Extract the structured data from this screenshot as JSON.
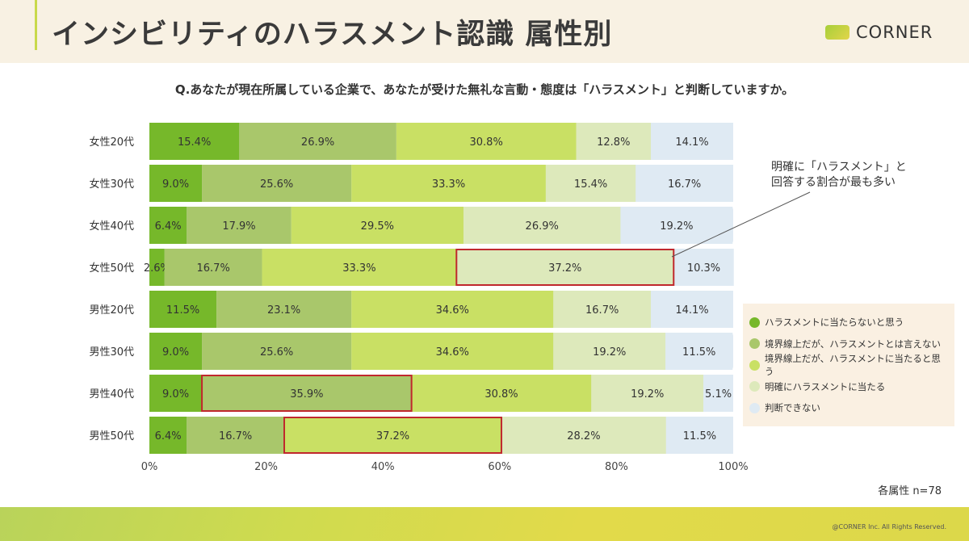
{
  "header": {
    "title": "インシビリティのハラスメント認識 属性別",
    "logo_text": "CORNER"
  },
  "question": "Q.あなたが現在所属している企業で、あなたが受けた無礼な言動・態度は「ハラスメント」と判断していますか。",
  "annotation": [
    "明確に「ハラスメント」と",
    "回答する割合が最も多い"
  ],
  "sample_note": "各属性 n=78",
  "copyright": "@CORNER Inc. All Rights Reserved.",
  "chart_data": {
    "type": "bar",
    "orientation": "horizontal-stacked-100",
    "categories": [
      "女性20代",
      "女性30代",
      "女性40代",
      "女性50代",
      "男性20代",
      "男性30代",
      "男性40代",
      "男性50代"
    ],
    "xlim": [
      0,
      100
    ],
    "xticks": [
      "0%",
      "20%",
      "40%",
      "60%",
      "80%",
      "100%"
    ],
    "legend_position": "right",
    "series": [
      {
        "name": "ハラスメントに当たらないと思う",
        "color": "#76b82a",
        "values": [
          15.4,
          9.0,
          6.4,
          2.6,
          11.5,
          9.0,
          9.0,
          6.4
        ]
      },
      {
        "name": "境界線上だが、ハラスメントとは言えない",
        "color": "#a9c76b",
        "values": [
          26.9,
          25.6,
          17.9,
          16.7,
          23.1,
          25.6,
          35.9,
          16.7
        ]
      },
      {
        "name": "境界線上だが、ハラスメントに当たると思う",
        "color": "#c9e064",
        "values": [
          30.8,
          33.3,
          29.5,
          33.3,
          34.6,
          34.6,
          30.8,
          37.2
        ]
      },
      {
        "name": "明確にハラスメントに当たる",
        "color": "#dde9bb",
        "values": [
          12.8,
          15.4,
          26.9,
          37.2,
          16.7,
          19.2,
          19.2,
          28.2
        ]
      },
      {
        "name": "判断できない",
        "color": "#dfeaf3",
        "values": [
          14.1,
          16.7,
          19.2,
          10.3,
          14.1,
          11.5,
          5.1,
          11.5
        ]
      }
    ],
    "highlights": [
      {
        "category": "女性50代",
        "series": 3
      },
      {
        "category": "男性40代",
        "series": 1
      },
      {
        "category": "男性50代",
        "series": 2
      }
    ],
    "highlight_color": "#c0282d"
  }
}
